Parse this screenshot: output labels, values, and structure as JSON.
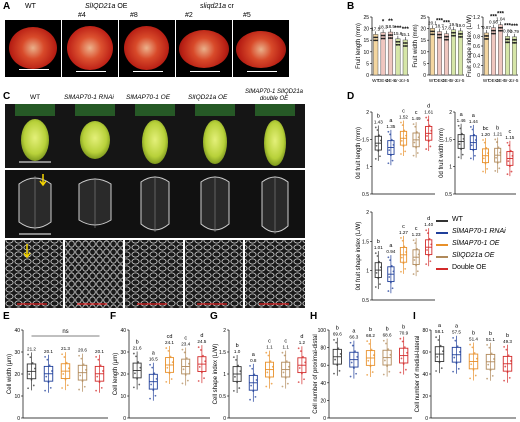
{
  "panel_letters": {
    "A": "A",
    "B": "B",
    "C": "C",
    "D": "D",
    "E": "E",
    "F": "F",
    "G": "G",
    "H": "H",
    "I": "I"
  },
  "panelA": {
    "wt": "WT",
    "oe_gene": "SlIQD21a",
    "oe_suffix": "OE",
    "oe_lines": [
      "#4",
      "#8"
    ],
    "cr_gene": "sliqd21a",
    "cr_suffix": "cr",
    "cr_lines": [
      "#2",
      "#5"
    ]
  },
  "panelC": {
    "headers": [
      "WT",
      "SlMAP70-1 RNAi",
      "SlMAP70-1 OE",
      "SlIQD21a OE",
      "SlMAP70-1 SlIQD21a double OE"
    ]
  },
  "legend": {
    "entries": [
      {
        "label": "WT",
        "color": "#333333",
        "italic": false
      },
      {
        "label": "SlMAP70-1 RNAi",
        "color": "#1f3f9a",
        "italic": true
      },
      {
        "label": "SlMAP70-1 OE",
        "color": "#e8902a",
        "italic": true
      },
      {
        "label": "SlIQD21a OE",
        "color": "#b0895a",
        "italic": true
      },
      {
        "label": "Double OE",
        "color": "#d32a2a",
        "italic": false
      }
    ]
  },
  "chart_data": [
    {
      "id": "B1",
      "type": "bar",
      "ylabel": "Fruit length (mm)",
      "categories": [
        "WT",
        "OE-4",
        "OE-8",
        "cr-2",
        "cr-5"
      ],
      "values": [
        17.5,
        18.3,
        18.5,
        15.6,
        15.1
      ],
      "labels": [
        "17.5",
        "18.3",
        "18.5",
        "15.6",
        "15.1"
      ],
      "stars": [
        "",
        "*",
        "**",
        "***",
        "***"
      ],
      "ylim": [
        0,
        25
      ],
      "ticks": [
        0,
        5,
        10,
        15,
        20,
        25
      ]
    },
    {
      "id": "B2",
      "type": "bar",
      "ylabel": "Fruit width (mm)",
      "categories": [
        "WT",
        "OE-4",
        "OE-8",
        "cr-2",
        "cr-5"
      ],
      "values": [
        20.1,
        18.7,
        17.8,
        19.5,
        19.0
      ],
      "labels": [
        "20.1",
        "18.7",
        "17.8",
        "19.5",
        "19.0"
      ],
      "stars": [
        "",
        "***",
        "***",
        "",
        ""
      ],
      "ylim": [
        0,
        25
      ],
      "ticks": [
        0,
        5,
        10,
        15,
        20,
        25
      ]
    },
    {
      "id": "B3",
      "type": "bar",
      "ylabel": "Fruit shape index (L/W)",
      "categories": [
        "WT",
        "OE-4",
        "OE-8",
        "cr-2",
        "cr-5"
      ],
      "values": [
        0.87,
        0.98,
        1.04,
        0.8,
        0.79
      ],
      "labels": [
        "0.87",
        "0.98",
        "1.04",
        "0.80",
        "0.79"
      ],
      "stars": [
        "",
        "***",
        "***",
        "***",
        "***"
      ],
      "ylim": [
        0,
        1.2
      ],
      "ticks": [
        0,
        0.2,
        0.4,
        0.6,
        0.8,
        1.0,
        1.2
      ]
    },
    {
      "id": "D1",
      "type": "box",
      "ylabel": "0d fruit length (mm)",
      "means": [
        1.43,
        1.35,
        1.52,
        1.49,
        1.61
      ],
      "labels": [
        "1.43",
        "1.35",
        "1.52",
        "1.49",
        "1.61"
      ],
      "letters": [
        "b",
        "a",
        "c",
        "c",
        "d"
      ],
      "ylim": [
        0.5,
        2.0
      ],
      "ticks": [
        0.5,
        1.0,
        1.5,
        2.0
      ]
    },
    {
      "id": "D2",
      "type": "box",
      "ylabel": "0d fruit width (mm)",
      "means": [
        1.46,
        1.44,
        1.2,
        1.21,
        1.15
      ],
      "labels": [
        "1.46",
        "1.44",
        "1.20",
        "1.21",
        "1.15"
      ],
      "letters": [
        "a",
        "a",
        "bc",
        "b",
        "c"
      ],
      "ylim": [
        0.5,
        2.0
      ],
      "ticks": [
        0.5,
        1.0,
        1.5,
        2.0
      ]
    },
    {
      "id": "D3",
      "type": "box",
      "ylabel": "0d fruit shape index (L/W)",
      "means": [
        1.01,
        0.94,
        1.27,
        1.23,
        1.4
      ],
      "labels": [
        "1.01",
        "0.94",
        "1.27",
        "1.23",
        "1.40"
      ],
      "letters": [
        "b",
        "a",
        "c",
        "c",
        "d"
      ],
      "ylim": [
        0.5,
        2.0
      ],
      "ticks": [
        0.5,
        1.0,
        1.5,
        2.0
      ]
    },
    {
      "id": "E",
      "type": "box",
      "ylabel": "Cell width (μm)",
      "means": [
        21.2,
        20.1,
        21.3,
        20.6,
        20.1
      ],
      "labels": [
        "21.2",
        "20.1",
        "21.3",
        "20.6",
        "20.1"
      ],
      "letters": [
        "",
        "",
        "",
        "",
        ""
      ],
      "note": "ns",
      "ylim": [
        0,
        40
      ],
      "ticks": [
        0,
        10,
        20,
        30,
        40
      ]
    },
    {
      "id": "F",
      "type": "box",
      "ylabel": "Cell length (μm)",
      "means": [
        21.6,
        16.5,
        24.1,
        23.4,
        24.5
      ],
      "labels": [
        "21.6",
        "16.5",
        "24.1",
        "23.4",
        "24.5"
      ],
      "letters": [
        "b",
        "a",
        "cd",
        "c",
        "d"
      ],
      "ylim": [
        0,
        40
      ],
      "ticks": [
        0,
        10,
        20,
        30,
        40
      ]
    },
    {
      "id": "G",
      "type": "box",
      "ylabel": "Cell shape index (L/W)",
      "means": [
        1.0,
        0.8,
        1.1,
        1.1,
        1.2
      ],
      "labels": [
        "1.0",
        "0.8",
        "1.1",
        "1.1",
        "1.2"
      ],
      "letters": [
        "b",
        "a",
        "c",
        "c",
        "d"
      ],
      "ylim": [
        0,
        2.0
      ],
      "ticks": [
        0,
        0.5,
        1.0,
        1.5,
        2.0
      ]
    },
    {
      "id": "H",
      "type": "box",
      "ylabel": "Cell number of proximal-distal",
      "means": [
        69.6,
        66.3,
        68.2,
        68.6,
        70.9
      ],
      "labels": [
        "69.6",
        "66.3",
        "68.2",
        "68.6",
        "70.9"
      ],
      "letters": [
        "b",
        "a",
        "b",
        "b",
        "b"
      ],
      "ylim": [
        0,
        100
      ],
      "ticks": [
        0,
        20,
        40,
        60,
        80,
        100
      ]
    },
    {
      "id": "I",
      "type": "box",
      "ylabel": "Cell number of medial-lateral",
      "means": [
        58.1,
        57.5,
        51.4,
        51.1,
        49.3
      ],
      "labels": [
        "58.1",
        "57.5",
        "51.4",
        "51.1",
        "49.3"
      ],
      "letters": [
        "a",
        "a",
        "b",
        "b",
        "b"
      ],
      "ylim": [
        0,
        80
      ],
      "ticks": [
        0,
        20,
        40,
        60,
        80
      ]
    }
  ]
}
